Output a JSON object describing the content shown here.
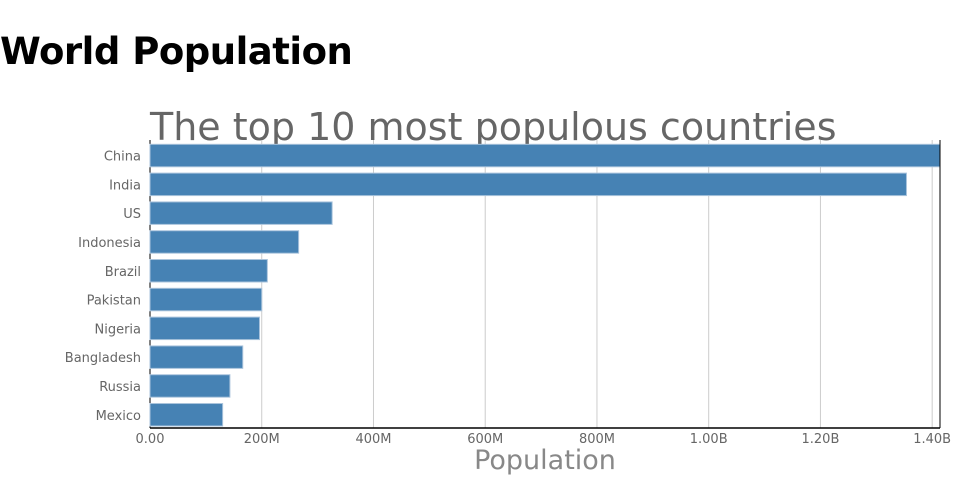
{
  "header": {
    "title": "World Population"
  },
  "chart_data": {
    "type": "bar",
    "orientation": "horizontal",
    "title": "The top 10 most populous countries",
    "xlabel": "Population",
    "ylabel": "",
    "categories": [
      "China",
      "India",
      "US",
      "Indonesia",
      "Brazil",
      "Pakistan",
      "Nigeria",
      "Bangladesh",
      "Russia",
      "Mexico"
    ],
    "values": [
      1414000000,
      1354000000,
      326000000,
      266000000,
      210000000,
      200000000,
      196000000,
      166000000,
      143000000,
      130000000
    ],
    "xlim": [
      0,
      1414000000
    ],
    "xticks": [
      0,
      200000000,
      400000000,
      600000000,
      800000000,
      1000000000,
      1200000000,
      1400000000
    ],
    "xtick_labels": [
      "0.00",
      "200M",
      "400M",
      "600M",
      "800M",
      "1.00B",
      "1.20B",
      "1.40B"
    ],
    "grid": true,
    "bar_color": "#4682b4"
  }
}
